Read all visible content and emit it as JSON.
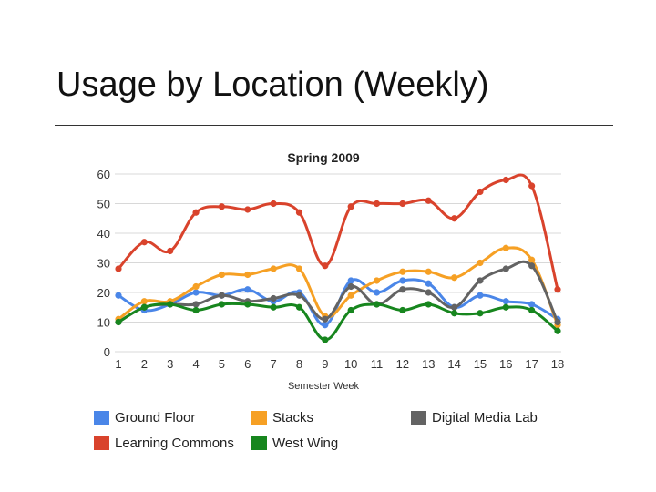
{
  "slide": {
    "title": "Usage by Location (Weekly)"
  },
  "chart_data": {
    "type": "line",
    "title": "Spring 2009",
    "xlabel": "Semester Week",
    "ylabel": "",
    "categories": [
      "1",
      "2",
      "3",
      "4",
      "5",
      "6",
      "7",
      "8",
      "9",
      "10",
      "11",
      "12",
      "13",
      "14",
      "15",
      "16",
      "17",
      "18"
    ],
    "yticks": [
      0,
      10,
      20,
      30,
      40,
      50,
      60
    ],
    "ylim": [
      0,
      60
    ],
    "grid": true,
    "legend_position": "bottom",
    "series": [
      {
        "name": "Ground Floor",
        "color": "#4a86e8",
        "values": [
          19,
          14,
          16,
          20,
          19,
          21,
          17,
          20,
          9,
          24,
          20,
          24,
          23,
          15,
          19,
          17,
          16,
          11
        ]
      },
      {
        "name": "Stacks",
        "color": "#f6a024",
        "values": [
          11,
          17,
          17,
          22,
          26,
          26,
          28,
          28,
          12,
          19,
          24,
          27,
          27,
          25,
          30,
          35,
          31,
          9
        ]
      },
      {
        "name": "Digital Media Lab",
        "color": "#636363",
        "values": [
          10,
          15,
          16,
          16,
          19,
          17,
          18,
          19,
          11,
          22,
          16,
          21,
          20,
          15,
          24,
          28,
          29,
          10
        ]
      },
      {
        "name": "Learning Commons",
        "color": "#d9432c",
        "values": [
          28,
          37,
          34,
          47,
          49,
          48,
          50,
          47,
          29,
          49,
          50,
          50,
          51,
          45,
          54,
          58,
          56,
          21
        ]
      },
      {
        "name": "West Wing",
        "color": "#17861e",
        "values": [
          10,
          15,
          16,
          14,
          16,
          16,
          15,
          15,
          4,
          14,
          16,
          14,
          16,
          13,
          13,
          15,
          14,
          7
        ]
      }
    ]
  }
}
